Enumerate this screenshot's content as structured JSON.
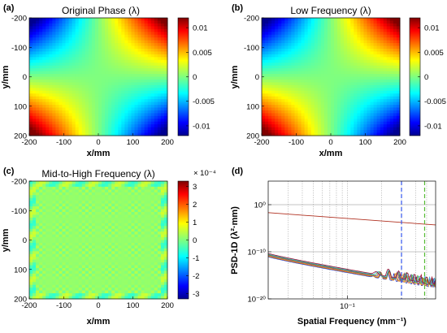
{
  "colors": {
    "jet": [
      "#00008f",
      "#0000ff",
      "#00ffff",
      "#7fff7f",
      "#ffff00",
      "#ff0000",
      "#7f0000"
    ],
    "psd_series": [
      "#1f3fd0",
      "#d45a10",
      "#e0b020",
      "#7a2a90",
      "#50a030",
      "#40b0d8",
      "#a01030"
    ],
    "vline_blue": "#3355ee",
    "vline_green": "#55bb33",
    "psd_top": "#b03020",
    "grid": "#888888"
  },
  "chart_data": [
    {
      "id": "a",
      "type": "heatmap",
      "panel_label": "(a)",
      "title": "Original Phase (λ)",
      "xlabel": "x/mm",
      "ylabel": "y/mm",
      "xlim": [
        -200,
        200
      ],
      "ylim": [
        -200,
        200
      ],
      "y_reversed": true,
      "xticks": [
        -200,
        -100,
        0,
        100,
        200
      ],
      "xtick_labels": [
        "-200",
        "-100",
        "0",
        "100",
        "200"
      ],
      "yticks": [
        -200,
        -100,
        0,
        100,
        200
      ],
      "ytick_labels": [
        "-200",
        "-100",
        "0",
        "100",
        "200"
      ],
      "field": "saddle",
      "clim": [
        -0.012,
        0.012
      ],
      "colorbar_ticks": [
        0.01,
        0.005,
        0,
        -0.005,
        -0.01
      ],
      "colorbar_tick_labels": [
        "0.01",
        "0.005",
        "0",
        "-0.005",
        "-0.01"
      ]
    },
    {
      "id": "b",
      "type": "heatmap",
      "panel_label": "(b)",
      "title": "Low Frequency (λ)",
      "xlabel": "x/mm",
      "ylabel": "y/mm",
      "xlim": [
        -200,
        200
      ],
      "ylim": [
        -200,
        200
      ],
      "y_reversed": true,
      "xticks": [
        -200,
        -100,
        0,
        100,
        200
      ],
      "xtick_labels": [
        "-200",
        "-100",
        "0",
        "100",
        "200"
      ],
      "yticks": [
        -200,
        -100,
        0,
        100,
        200
      ],
      "ytick_labels": [
        "-200",
        "-100",
        "0",
        "100",
        "200"
      ],
      "field": "saddle",
      "clim": [
        -0.012,
        0.012
      ],
      "colorbar_ticks": [
        0.01,
        0.005,
        0,
        -0.005,
        -0.01
      ],
      "colorbar_tick_labels": [
        "0.01",
        "0.005",
        "0",
        "-0.005",
        "-0.01"
      ]
    },
    {
      "id": "c",
      "type": "heatmap",
      "panel_label": "(c)",
      "title": "Mid-to-High Frequency (λ)",
      "xlabel": "x/mm",
      "ylabel": "y/mm",
      "xlim": [
        -200,
        200
      ],
      "ylim": [
        -200,
        200
      ],
      "y_reversed": true,
      "xticks": [
        -200,
        -100,
        0,
        100,
        200
      ],
      "xtick_labels": [
        "-200",
        "-100",
        "0",
        "100",
        "200"
      ],
      "yticks": [
        -200,
        -100,
        0,
        100,
        200
      ],
      "ytick_labels": [
        "-200",
        "-100",
        "0",
        "100",
        "200"
      ],
      "field": "ripple",
      "clim": [
        -3.3,
        3.3
      ],
      "colorbar_exponent": "× 10⁻⁴",
      "colorbar_ticks": [
        3,
        2,
        1,
        0,
        -1,
        -2,
        -3
      ],
      "colorbar_tick_labels": [
        "3",
        "2",
        "1",
        "0",
        "-1",
        "-2",
        "-3"
      ]
    },
    {
      "id": "d",
      "type": "line",
      "panel_label": "(d)",
      "xlabel": "Spatial Frequency (mm⁻¹)",
      "ylabel": "PSD-1D (λ²·mm)",
      "x_scale": "log",
      "y_scale": "log",
      "xlim": [
        0.02,
        0.6
      ],
      "ylim": [
        1e-20,
        100000.0
      ],
      "xtick_major": [
        0.1
      ],
      "xtick_major_labels": [
        "10⁻¹"
      ],
      "yticks": [
        1.0,
        1e-10,
        1e-20
      ],
      "ytick_labels": [
        "10⁰",
        "10⁻¹⁰",
        "10⁻²⁰"
      ],
      "grid": true,
      "vertical_lines": [
        {
          "x": 0.3,
          "color": "blue",
          "style": "dashed"
        },
        {
          "x": 0.48,
          "color": "green",
          "style": "dashed"
        }
      ],
      "top_line": {
        "x": [
          0.02,
          0.6
        ],
        "y": [
          0.02,
          5e-05
        ]
      },
      "series_envelope": {
        "x_start": 0.02,
        "y_start": 2e-11,
        "y_end": 5e-18,
        "count": 7
      }
    }
  ]
}
